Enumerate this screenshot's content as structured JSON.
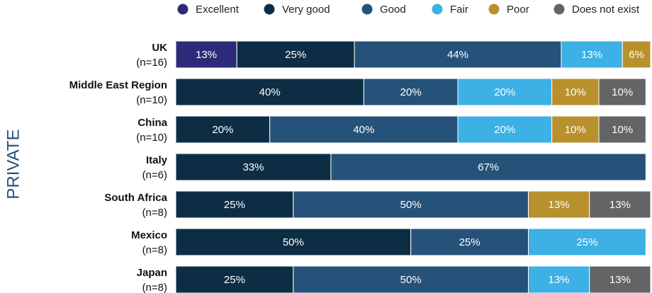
{
  "chart_data": {
    "type": "stacked-bar-horizontal",
    "group_label": "PRIVATE",
    "categories": [
      "UK",
      "Middle East Region",
      "China",
      "Italy",
      "South Africa",
      "Mexico",
      "Japan"
    ],
    "sample_sizes": [
      "(n=16)",
      "(n=10)",
      "(n=10)",
      "(n=6)",
      "(n=8)",
      "(n=8)",
      "(n=8)"
    ],
    "series": [
      {
        "name": "Excellent",
        "color": "#2e2a7a",
        "values": [
          13,
          null,
          null,
          null,
          null,
          null,
          null
        ],
        "value_labels": [
          "13%",
          null,
          null,
          null,
          null,
          null,
          null
        ]
      },
      {
        "name": "Very good",
        "color": "#0d2d44",
        "values": [
          25,
          40,
          20,
          33,
          25,
          50,
          25
        ],
        "value_labels": [
          "25%",
          "40%",
          "20%",
          "33%",
          "25%",
          "50%",
          "25%"
        ]
      },
      {
        "name": "Good",
        "color": "#26527a",
        "values": [
          44,
          20,
          40,
          67,
          50,
          25,
          50
        ],
        "value_labels": [
          "44%",
          "20%",
          "40%",
          "67%",
          "50%",
          "25%",
          "50%"
        ]
      },
      {
        "name": "Fair",
        "color": "#3db0e6",
        "values": [
          13,
          20,
          20,
          null,
          null,
          25,
          13
        ],
        "value_labels": [
          "13%",
          "20%",
          "20%",
          null,
          null,
          "25%",
          "13%"
        ]
      },
      {
        "name": "Poor",
        "color": "#b8902e",
        "values": [
          6,
          10,
          10,
          null,
          13,
          null,
          null
        ],
        "value_labels": [
          "6%",
          "10%",
          "10%",
          null,
          "13%",
          null,
          null
        ]
      },
      {
        "name": "Does not exist",
        "color": "#636466",
        "values": [
          null,
          10,
          10,
          null,
          13,
          null,
          13
        ],
        "value_labels": [
          null,
          "10%",
          "10%",
          null,
          "13%",
          null,
          "13%"
        ]
      }
    ]
  }
}
